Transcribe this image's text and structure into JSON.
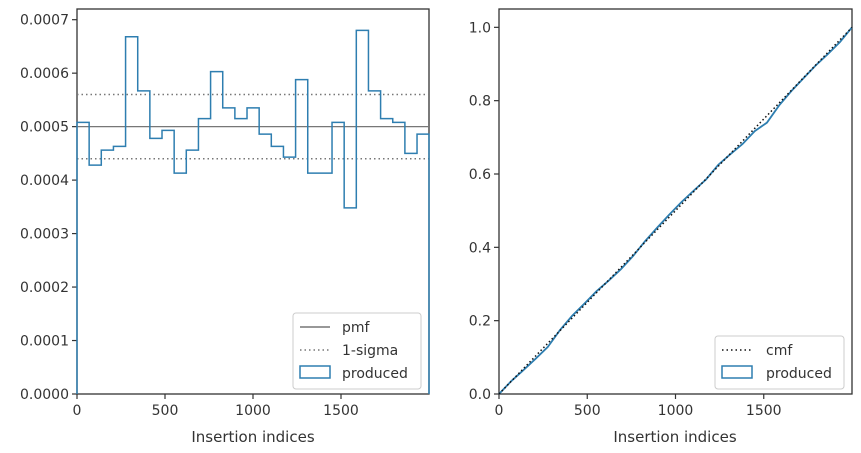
{
  "chart_data": [
    {
      "type": "line",
      "xlabel": "Insertion indices",
      "ylabel": "",
      "xlim": [
        0,
        2000
      ],
      "ylim": [
        0,
        0.00072
      ],
      "xticks": [
        "0",
        "500",
        "1000",
        "1500"
      ],
      "xtick_values": [
        0,
        500,
        1000,
        1500
      ],
      "yticks": [
        "0.0000",
        "0.0001",
        "0.0002",
        "0.0003",
        "0.0004",
        "0.0005",
        "0.0006",
        "0.0007"
      ],
      "ytick_values": [
        0,
        0.0001,
        0.0002,
        0.0003,
        0.0004,
        0.0005,
        0.0006,
        0.0007
      ],
      "grid": false,
      "legend_position": "bottom-right",
      "series": [
        {
          "name": "pmf",
          "style": "solid",
          "color": "#777777",
          "y": 0.0005
        },
        {
          "name": "1-sigma",
          "style": "dotted",
          "color": "#777777",
          "y_values": [
            0.00044,
            0.00056
          ]
        },
        {
          "name": "produced",
          "style": "step",
          "color": "#2e7eb0",
          "bin_edges": [
            0,
            69,
            138,
            207,
            276,
            345,
            414,
            483,
            552,
            621,
            690,
            759,
            828,
            897,
            966,
            1035,
            1104,
            1173,
            1242,
            1311,
            1380,
            1449,
            1518,
            1587,
            1656,
            1725,
            1794,
            1863,
            1932,
            2000
          ],
          "values": [
            0.000508,
            0.000428,
            0.000456,
            0.000463,
            0.000668,
            0.000567,
            0.000478,
            0.000493,
            0.000413,
            0.000456,
            0.000515,
            0.000603,
            0.000535,
            0.000515,
            0.000535,
            0.000486,
            0.000463,
            0.000443,
            0.000588,
            0.000413,
            0.000413,
            0.000508,
            0.000348,
            0.00068,
            0.000567,
            0.000515,
            0.000508,
            0.00045,
            0.000486
          ]
        }
      ]
    },
    {
      "type": "line",
      "xlabel": "Insertion indices",
      "ylabel": "",
      "xlim": [
        0,
        2000
      ],
      "ylim": [
        0,
        1.05
      ],
      "xticks": [
        "0",
        "500",
        "1000",
        "1500"
      ],
      "xtick_values": [
        0,
        500,
        1000,
        1500
      ],
      "yticks": [
        "0.0",
        "0.2",
        "0.4",
        "0.6",
        "0.8",
        "1.0"
      ],
      "ytick_values": [
        0,
        0.2,
        0.4,
        0.6,
        0.8,
        1.0
      ],
      "grid": false,
      "legend_position": "bottom-right",
      "series": [
        {
          "name": "cmf",
          "style": "dotted",
          "color": "#111111",
          "x": [
            0,
            2000
          ],
          "y": [
            0,
            1.0
          ]
        },
        {
          "name": "produced",
          "style": "solid",
          "color": "#2e7eb0",
          "x": [
            0,
            69,
            138,
            207,
            276,
            345,
            414,
            483,
            552,
            621,
            690,
            759,
            828,
            897,
            966,
            1035,
            1104,
            1173,
            1242,
            1311,
            1380,
            1449,
            1518,
            1587,
            1656,
            1725,
            1794,
            1863,
            1932,
            2000
          ],
          "y": [
            0,
            0.035,
            0.065,
            0.096,
            0.128,
            0.174,
            0.213,
            0.246,
            0.28,
            0.309,
            0.34,
            0.376,
            0.417,
            0.454,
            0.49,
            0.524,
            0.555,
            0.585,
            0.625,
            0.654,
            0.682,
            0.717,
            0.74,
            0.787,
            0.826,
            0.861,
            0.896,
            0.927,
            0.96,
            1.0
          ]
        }
      ]
    }
  ]
}
